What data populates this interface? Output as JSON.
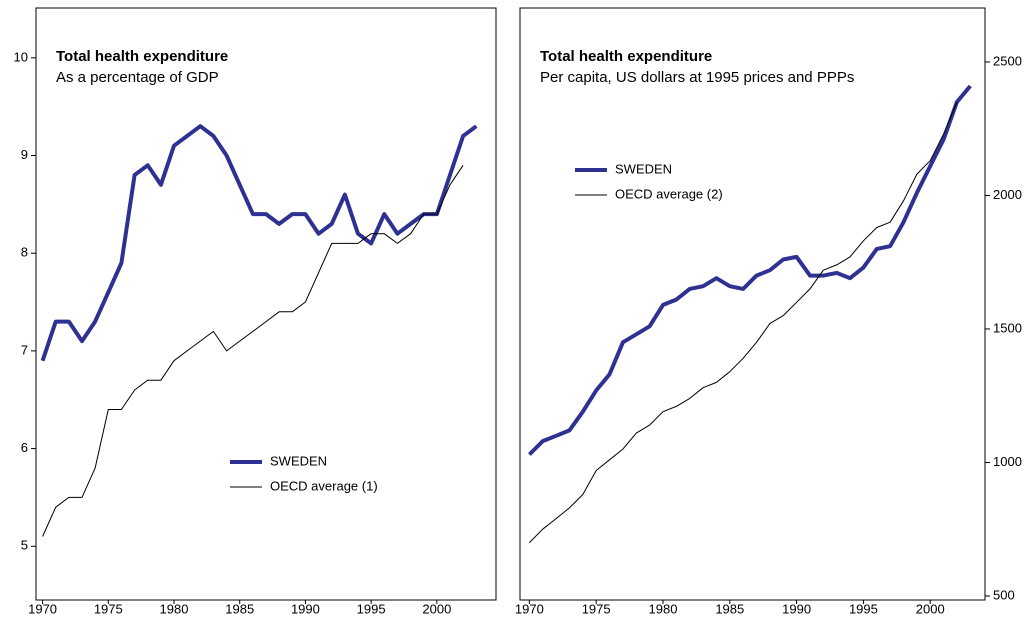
{
  "chart_data": [
    {
      "type": "line",
      "title": "Total health expenditure",
      "subtitle": "As a percentage of GDP",
      "x": [
        1970,
        1971,
        1972,
        1973,
        1974,
        1975,
        1976,
        1977,
        1978,
        1979,
        1980,
        1981,
        1982,
        1983,
        1984,
        1985,
        1986,
        1987,
        1988,
        1989,
        1990,
        1991,
        1992,
        1993,
        1994,
        1995,
        1996,
        1997,
        1998,
        1999,
        2000,
        2001,
        2002,
        2003
      ],
      "series": [
        {
          "name": "SWEDEN",
          "color": "#2e3192",
          "width": 4,
          "values": [
            6.9,
            7.3,
            7.3,
            7.1,
            7.3,
            7.6,
            7.9,
            8.8,
            8.9,
            8.7,
            9.1,
            9.2,
            9.3,
            9.2,
            9.0,
            8.7,
            8.4,
            8.4,
            8.3,
            8.4,
            8.4,
            8.2,
            8.3,
            8.6,
            8.2,
            8.1,
            8.4,
            8.2,
            8.3,
            8.4,
            8.4,
            8.8,
            9.2,
            9.3
          ]
        },
        {
          "name": "OECD average (1)",
          "color": "#000000",
          "width": 1,
          "values": [
            5.1,
            5.4,
            5.5,
            5.5,
            5.8,
            6.4,
            6.4,
            6.6,
            6.7,
            6.7,
            6.9,
            7.0,
            7.1,
            7.2,
            7.0,
            7.1,
            7.2,
            7.3,
            7.4,
            7.4,
            7.5,
            7.8,
            8.1,
            8.1,
            8.1,
            8.2,
            8.2,
            8.1,
            8.2,
            8.4,
            8.4,
            8.7,
            8.9,
            null
          ]
        }
      ],
      "xlim": [
        1969.5,
        2004.5
      ],
      "xticks": [
        1970,
        1975,
        1980,
        1985,
        1990,
        1995,
        2000
      ],
      "ylim": [
        4.45,
        10.51
      ],
      "yticks": [
        5,
        6,
        7,
        8,
        9,
        10
      ],
      "yaxis": "left",
      "legend": "lower right"
    },
    {
      "type": "line",
      "title": "Total health expenditure",
      "subtitle": "Per capita, US dollars at 1995 prices and PPPs",
      "x": [
        1970,
        1971,
        1972,
        1973,
        1974,
        1975,
        1976,
        1977,
        1978,
        1979,
        1980,
        1981,
        1982,
        1983,
        1984,
        1985,
        1986,
        1987,
        1988,
        1989,
        1990,
        1991,
        1992,
        1993,
        1994,
        1995,
        1996,
        1997,
        1998,
        1999,
        2000,
        2001,
        2002,
        2003
      ],
      "series": [
        {
          "name": "SWEDEN",
          "color": "#2e3192",
          "width": 4,
          "values": [
            1030,
            1080,
            1100,
            1120,
            1190,
            1270,
            1330,
            1450,
            1480,
            1510,
            1590,
            1610,
            1650,
            1660,
            1690,
            1660,
            1650,
            1700,
            1720,
            1760,
            1770,
            1700,
            1700,
            1710,
            1690,
            1730,
            1800,
            1810,
            1900,
            2010,
            2110,
            2210,
            2350,
            2410
          ]
        },
        {
          "name": "OECD average (2)",
          "color": "#000000",
          "width": 1,
          "values": [
            700,
            750,
            790,
            830,
            880,
            970,
            1010,
            1050,
            1110,
            1140,
            1190,
            1210,
            1240,
            1280,
            1300,
            1340,
            1390,
            1450,
            1520,
            1550,
            1600,
            1650,
            1720,
            1740,
            1770,
            1830,
            1880,
            1900,
            1980,
            2080,
            2130,
            2230,
            2350,
            null
          ]
        }
      ],
      "xlim": [
        1969.3,
        2004.1
      ],
      "xticks": [
        1970,
        1975,
        1980,
        1985,
        1990,
        1995,
        2000
      ],
      "ylim": [
        485,
        2702
      ],
      "yticks": [
        500,
        1000,
        1500,
        2000,
        2500
      ],
      "yaxis": "right",
      "legend": "upper left"
    }
  ]
}
